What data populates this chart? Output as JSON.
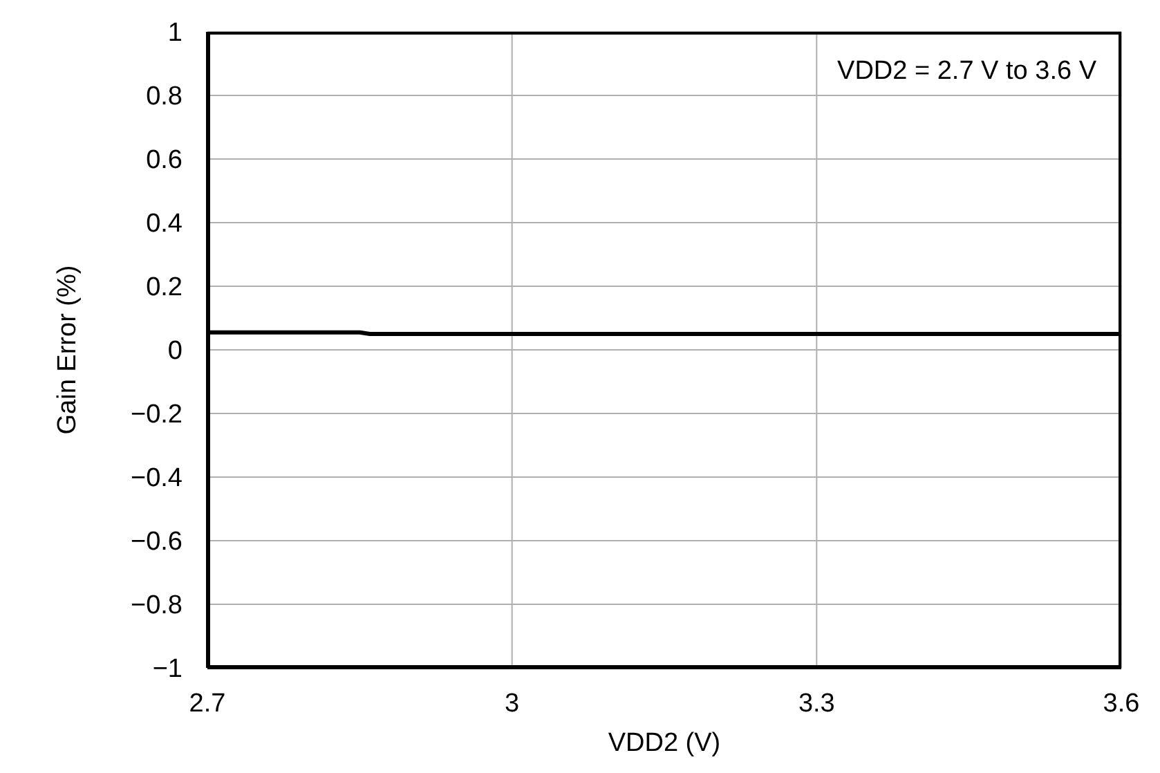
{
  "chart_data": {
    "type": "line",
    "xlabel": "VDD2 (V)",
    "ylabel": "Gain Error (%)",
    "annotations": [
      "VDD2 = 2.7 V to 3.6 V"
    ],
    "x": [
      2.7,
      2.85,
      2.86,
      3.6
    ],
    "series": [
      {
        "color": "#000000",
        "values": [
          0.055,
          0.055,
          0.05,
          0.05
        ]
      }
    ],
    "xlim": [
      2.7,
      3.6
    ],
    "xticks": [
      2.7,
      3,
      3.3,
      3.6
    ],
    "ylim": [
      -1,
      1
    ],
    "yticks": [
      -1,
      -0.8,
      -0.6,
      -0.4,
      -0.2,
      0,
      0.2,
      0.4,
      0.6,
      0.8,
      1
    ],
    "grid": true,
    "marker": "none",
    "line_style": "solid"
  }
}
